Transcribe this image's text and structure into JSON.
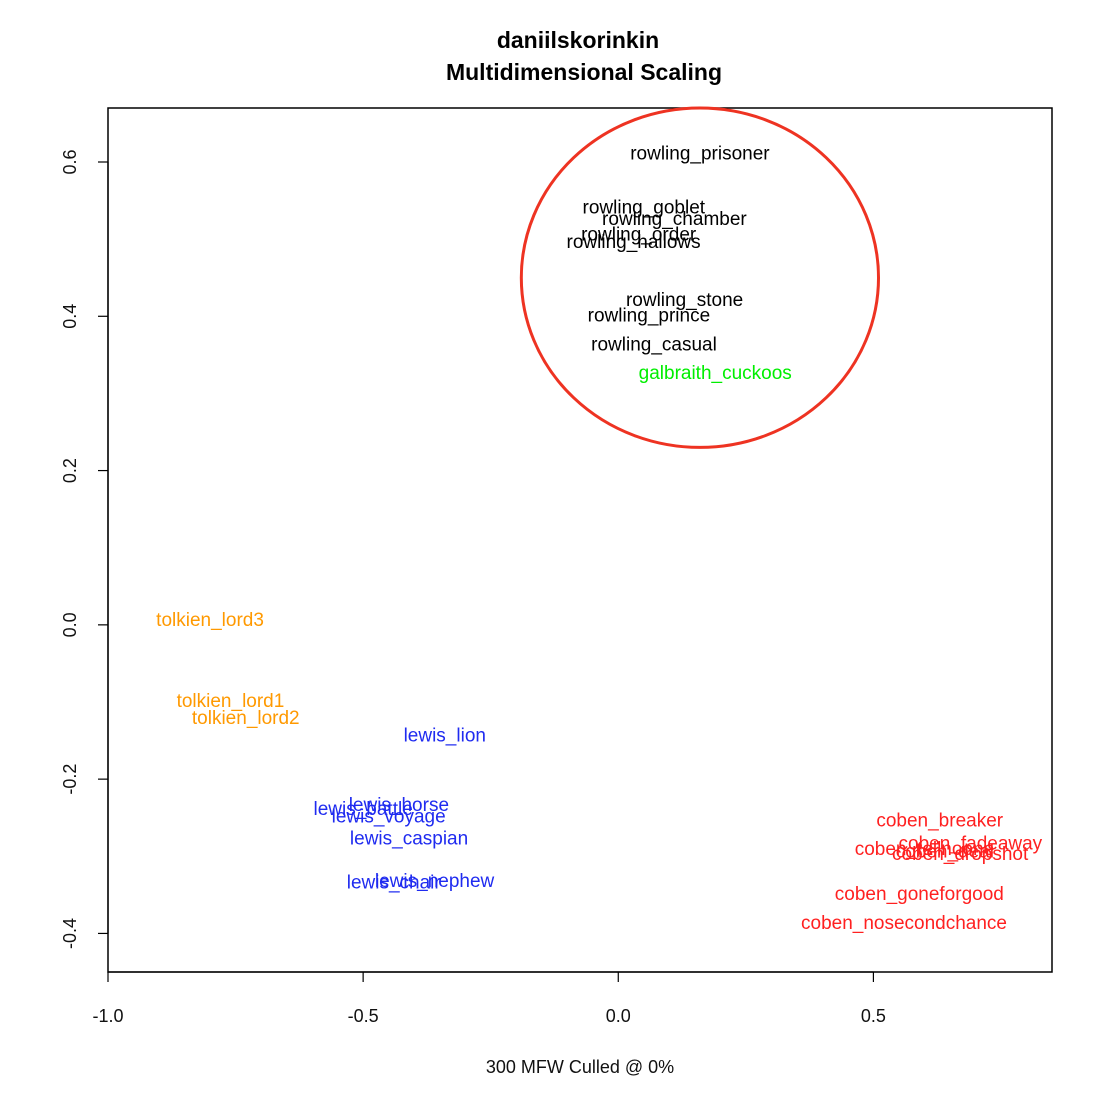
{
  "chart_data": {
    "type": "scatter",
    "title": "daniilskorinkin",
    "subtitle": "Multidimensional Scaling",
    "xlabel": "300 MFW  Culled @ 0%",
    "ylabel": "",
    "xlim": [
      -1.0,
      0.85
    ],
    "ylim": [
      -0.45,
      0.67
    ],
    "x_ticks": [
      -1.0,
      -0.5,
      0.0,
      0.5
    ],
    "x_tick_labels": [
      "-1.0",
      "-0.5",
      "0.0",
      "0.5"
    ],
    "y_ticks": [
      -0.4,
      -0.2,
      0.0,
      0.2,
      0.4,
      0.6
    ],
    "y_tick_labels": [
      "-0.4",
      "-0.2",
      "0.0",
      "0.2",
      "0.4",
      "0.6"
    ],
    "grid": false,
    "legend": "none",
    "highlight_ellipse": {
      "cx": 0.16,
      "cy": 0.45,
      "rx": 0.35,
      "ry": 0.22,
      "color": "#ee3322"
    },
    "points": [
      {
        "label": "rowling_prisoner",
        "x": 0.16,
        "y": 0.61,
        "color": "#000000"
      },
      {
        "label": "rowling_goblet",
        "x": 0.05,
        "y": 0.54,
        "color": "#000000"
      },
      {
        "label": "rowling_chamber",
        "x": 0.11,
        "y": 0.525,
        "color": "#000000"
      },
      {
        "label": "rowling_order",
        "x": 0.04,
        "y": 0.505,
        "color": "#000000"
      },
      {
        "label": "rowling_hallows",
        "x": 0.03,
        "y": 0.495,
        "color": "#000000"
      },
      {
        "label": "rowling_stone",
        "x": 0.13,
        "y": 0.42,
        "color": "#000000"
      },
      {
        "label": "rowling_prince",
        "x": 0.06,
        "y": 0.4,
        "color": "#000000"
      },
      {
        "label": "rowling_casual",
        "x": 0.07,
        "y": 0.362,
        "color": "#000000"
      },
      {
        "label": "galbraith_cuckoos",
        "x": 0.19,
        "y": 0.325,
        "color": "#00ee00"
      },
      {
        "label": "tolkien_lord3",
        "x": -0.8,
        "y": 0.005,
        "color": "#ff9900"
      },
      {
        "label": "tolkien_lord1",
        "x": -0.76,
        "y": -0.1,
        "color": "#ff9900"
      },
      {
        "label": "tolkien_lord2",
        "x": -0.73,
        "y": -0.122,
        "color": "#ff9900"
      },
      {
        "label": "lewis_lion",
        "x": -0.34,
        "y": -0.145,
        "color": "#1f2bf0"
      },
      {
        "label": "lewis_horse",
        "x": -0.43,
        "y": -0.235,
        "color": "#1f2bf0"
      },
      {
        "label": "lewis_battle",
        "x": -0.5,
        "y": -0.24,
        "color": "#1f2bf0"
      },
      {
        "label": "lewis_voyage",
        "x": -0.45,
        "y": -0.25,
        "color": "#1f2bf0"
      },
      {
        "label": "lewis_caspian",
        "x": -0.41,
        "y": -0.278,
        "color": "#1f2bf0"
      },
      {
        "label": "lewis_nephew",
        "x": -0.36,
        "y": -0.333,
        "color": "#1f2bf0"
      },
      {
        "label": "lewis_chair",
        "x": -0.44,
        "y": -0.335,
        "color": "#1f2bf0"
      },
      {
        "label": "coben_breaker",
        "x": 0.63,
        "y": -0.255,
        "color": "#ff2020"
      },
      {
        "label": "coben_fadeaway",
        "x": 0.69,
        "y": -0.285,
        "color": "#ff2020"
      },
      {
        "label": "coben_tellnoone",
        "x": 0.6,
        "y": -0.292,
        "color": "#ff2020"
      },
      {
        "label": "coben_deal",
        "x": 0.64,
        "y": -0.295,
        "color": "#ff2020"
      },
      {
        "label": "coben_dropshot",
        "x": 0.67,
        "y": -0.298,
        "color": "#ff2020"
      },
      {
        "label": "coben_goneforgood",
        "x": 0.59,
        "y": -0.35,
        "color": "#ff2020"
      },
      {
        "label": "coben_nosecondchance",
        "x": 0.56,
        "y": -0.388,
        "color": "#ff2020"
      }
    ]
  }
}
